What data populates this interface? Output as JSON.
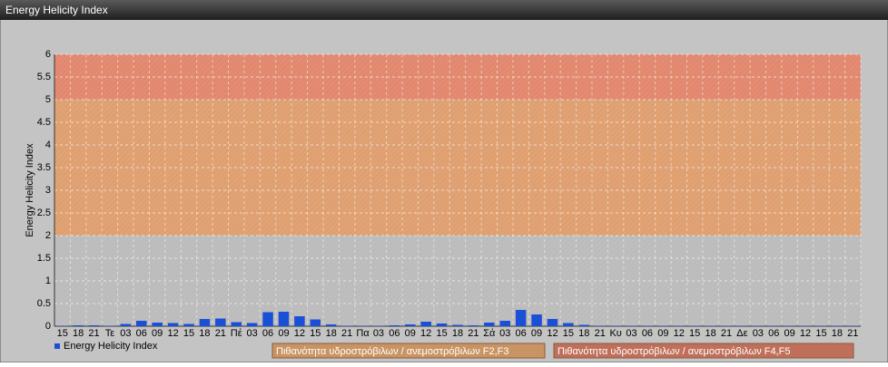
{
  "chart_data": {
    "type": "bar",
    "title": "Energy Helicity Index",
    "y_label": "Energy Helicity Index",
    "categories": [
      "15",
      "18",
      "21",
      "Τε",
      "03",
      "06",
      "09",
      "12",
      "15",
      "18",
      "21",
      "Πέ",
      "03",
      "06",
      "09",
      "12",
      "15",
      "18",
      "21",
      "Πα",
      "03",
      "06",
      "09",
      "12",
      "15",
      "18",
      "21",
      "Σά",
      "03",
      "06",
      "09",
      "12",
      "15",
      "18",
      "21",
      "Κυ",
      "03",
      "06",
      "09",
      "12",
      "15",
      "18",
      "21",
      "Δε",
      "03",
      "06",
      "09",
      "12",
      "15",
      "18",
      "21"
    ],
    "series": [
      {
        "name": "Energy Helicity Index",
        "color": "#1a4fd6",
        "values": [
          0.01,
          0.02,
          0.02,
          0.01,
          0.05,
          0.12,
          0.08,
          0.07,
          0.05,
          0.16,
          0.17,
          0.09,
          0.07,
          0.31,
          0.32,
          0.22,
          0.15,
          0.04,
          0.01,
          0.01,
          0.01,
          0.02,
          0.04,
          0.1,
          0.06,
          0.03,
          0.02,
          0.08,
          0.12,
          0.36,
          0.26,
          0.16,
          0.07,
          0.03,
          0.01,
          0.01,
          0.01,
          0.01,
          0.01,
          0.01,
          0.01,
          0.01,
          0.01,
          0.01,
          0.01,
          0.01,
          0.01,
          0.01,
          0.01,
          0.01,
          0.01
        ]
      }
    ],
    "bands": [
      {
        "from": 2,
        "to": 5,
        "color": "#dfa071",
        "label": "Πιθανότητα υδροστρόβιλων / ανεμοστρόβιλων F2,F3"
      },
      {
        "from": 5,
        "to": 6,
        "color": "#e2886f",
        "label": "Πιθανότητα υδροστρόβιλων / ανεμοστρόβιλων F4,F5"
      }
    ],
    "ylim": [
      0,
      6
    ],
    "yticks": [
      0,
      0.5,
      1,
      1.5,
      2,
      2.5,
      3,
      3.5,
      4,
      4.5,
      5,
      5.5,
      6
    ],
    "grid": true
  }
}
